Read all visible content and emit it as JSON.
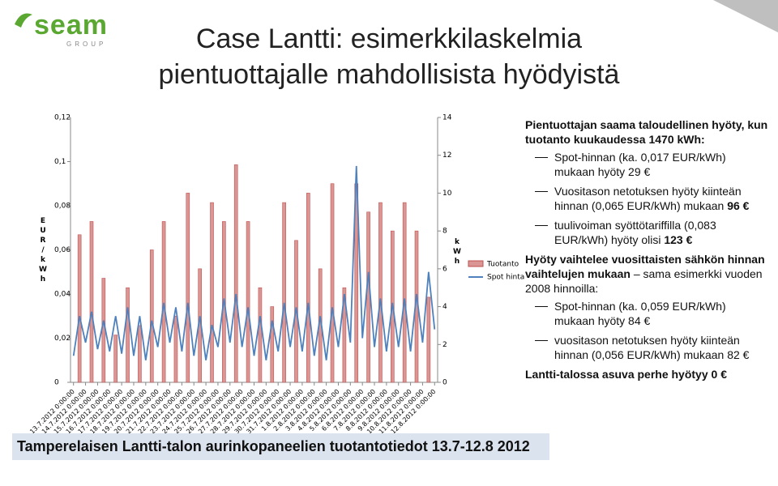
{
  "logo": {
    "name": "seam",
    "group": "GROUP"
  },
  "title": [
    "Case Lantti: esimerkkilaskelmia",
    "pientuottajalle mahdollisista hyödyistä"
  ],
  "caption": "Tamperelaisen Lantti-talon aurinkopaneelien tuotantotiedot 13.7-12.8 2012",
  "chart_data": {
    "type": "bar",
    "ylabel": "EUR/kWh",
    "y2label": "kWh",
    "categories": [
      "13.7.2012 0:00:00",
      null,
      "14.7.2012 0:00:00",
      null,
      "15.7.2012 0:00:00",
      null,
      "16.7.2012 0:00:00",
      null,
      "17.7.2012 0:00:00",
      null,
      "18.7.2012 0:00:00",
      null,
      "19.7.2012 0:00:00",
      null,
      "20.7.2012 0:00:00",
      null,
      "21.7.2012 0:00:00",
      null,
      "22.7.2012 0:00:00",
      null,
      "23.7.2012 0:00:00",
      null,
      "24.7.2012 0:00:00",
      null,
      "25.7.2012 0:00:00",
      null,
      "26.7.2012 0:00:00",
      null,
      "27.7.2012 0:00:00",
      null,
      "28.7.2012 0:00:00",
      null,
      "29.7.2012 0:00:00",
      null,
      "30.7.2012 0:00:00",
      null,
      "31.7.2012 0:00:00",
      null,
      "1.8.2012 0:00:00",
      null,
      "2.8.2012 0:00:00",
      null,
      "3.8.2012 0:00:00",
      null,
      "4.8.2012 0:00:00",
      null,
      "5.8.2012 0:00:00",
      null,
      "6.8.2012 0:00:00",
      null,
      "7.8.2012 0:00:00",
      null,
      "8.8.2012 0:00:00",
      null,
      "9.8.2012 0:00:00",
      null,
      "10.8.2012 0:00:00",
      null,
      "11.8.2012 0:00:00",
      null,
      "12.8.2012 0:00:00"
    ],
    "series": [
      {
        "name": "Tuotanto",
        "type": "bar",
        "axis": "y2",
        "color": "#d99694",
        "values": [
          0,
          7.8,
          0,
          8.5,
          0,
          5.5,
          0,
          2.5,
          0,
          5,
          0,
          3,
          0,
          7,
          0,
          8.5,
          0,
          3.5,
          0,
          10,
          0,
          6,
          0,
          9.5,
          0,
          8.5,
          0,
          11.5,
          0,
          8.5,
          0,
          5,
          0,
          4,
          0,
          9.5,
          0,
          7.5,
          0,
          10,
          0,
          6,
          0,
          10.5,
          0,
          5,
          0,
          10.5,
          0,
          9,
          0,
          9.5,
          0,
          8,
          0,
          9.5,
          0,
          8,
          0,
          4.5,
          0
        ]
      },
      {
        "name": "Spot hinta",
        "type": "line",
        "color": "#4f81bd",
        "values": [
          0.012,
          0.03,
          0.018,
          0.032,
          0.015,
          0.028,
          0.014,
          0.03,
          0.013,
          0.034,
          0.012,
          0.03,
          0.01,
          0.028,
          0.016,
          0.036,
          0.018,
          0.034,
          0.014,
          0.036,
          0.012,
          0.03,
          0.01,
          0.026,
          0.016,
          0.038,
          0.018,
          0.04,
          0.016,
          0.034,
          0.012,
          0.03,
          0.01,
          0.028,
          0.014,
          0.036,
          0.016,
          0.034,
          0.014,
          0.036,
          0.012,
          0.03,
          0.01,
          0.034,
          0.016,
          0.04,
          0.018,
          0.098,
          0.02,
          0.05,
          0.016,
          0.038,
          0.014,
          0.036,
          0.016,
          0.038,
          0.014,
          0.04,
          0.018,
          0.05,
          0.024
        ]
      }
    ],
    "ylim": [
      0,
      0.12
    ],
    "yticks": [
      0,
      {
        "value": 0.02,
        "label": "0,02"
      },
      {
        "value": 0.04,
        "label": "0,04"
      },
      {
        "value": 0.06,
        "label": "0,06"
      },
      {
        "value": 0.08,
        "label": "0,08"
      },
      {
        "value": 0.1,
        "label": "0,1"
      },
      {
        "value": 0.12,
        "label": "0,12"
      }
    ],
    "y2lim": [
      0,
      14
    ],
    "y2ticks": [
      0,
      2,
      4,
      6,
      8,
      10,
      12,
      14
    ],
    "legend": "right"
  },
  "text": {
    "heading": "Pientuottajan saama taloudellinen hyöty, kun tuotanto kuukaudessa 1470 kWh:",
    "bullets1": [
      {
        "text": "Spot-hinnan (ka. 0,017 EUR/kWh) mukaan hyöty 29 €",
        "bold": ""
      },
      {
        "text": "Vuositason netotuksen hyöty kiinteän hinnan (0,065 EUR/kWh) mukaan",
        "bold": "96 €"
      },
      {
        "text": "tuulivoiman syöttötariffilla (0,083 EUR/kWh) hyöty olisi",
        "bold": "123 €"
      }
    ],
    "para": {
      "bold": "Hyöty vaihtelee vuosittaisten sähkön hinnan vaihtelujen mukaan",
      "text": "– sama esimerkki vuoden 2008 hinnoilla:"
    },
    "bullets2": [
      "Spot-hinnan (ka. 0,059 EUR/kWh) mukaan hyöty 84 €",
      "vuositason netotuksen hyöty kiinteän hinnan (0,056 EUR/kWh) mukaan 82 €"
    ],
    "final": "Lantti-talossa asuva perhe hyötyy 0 €"
  }
}
